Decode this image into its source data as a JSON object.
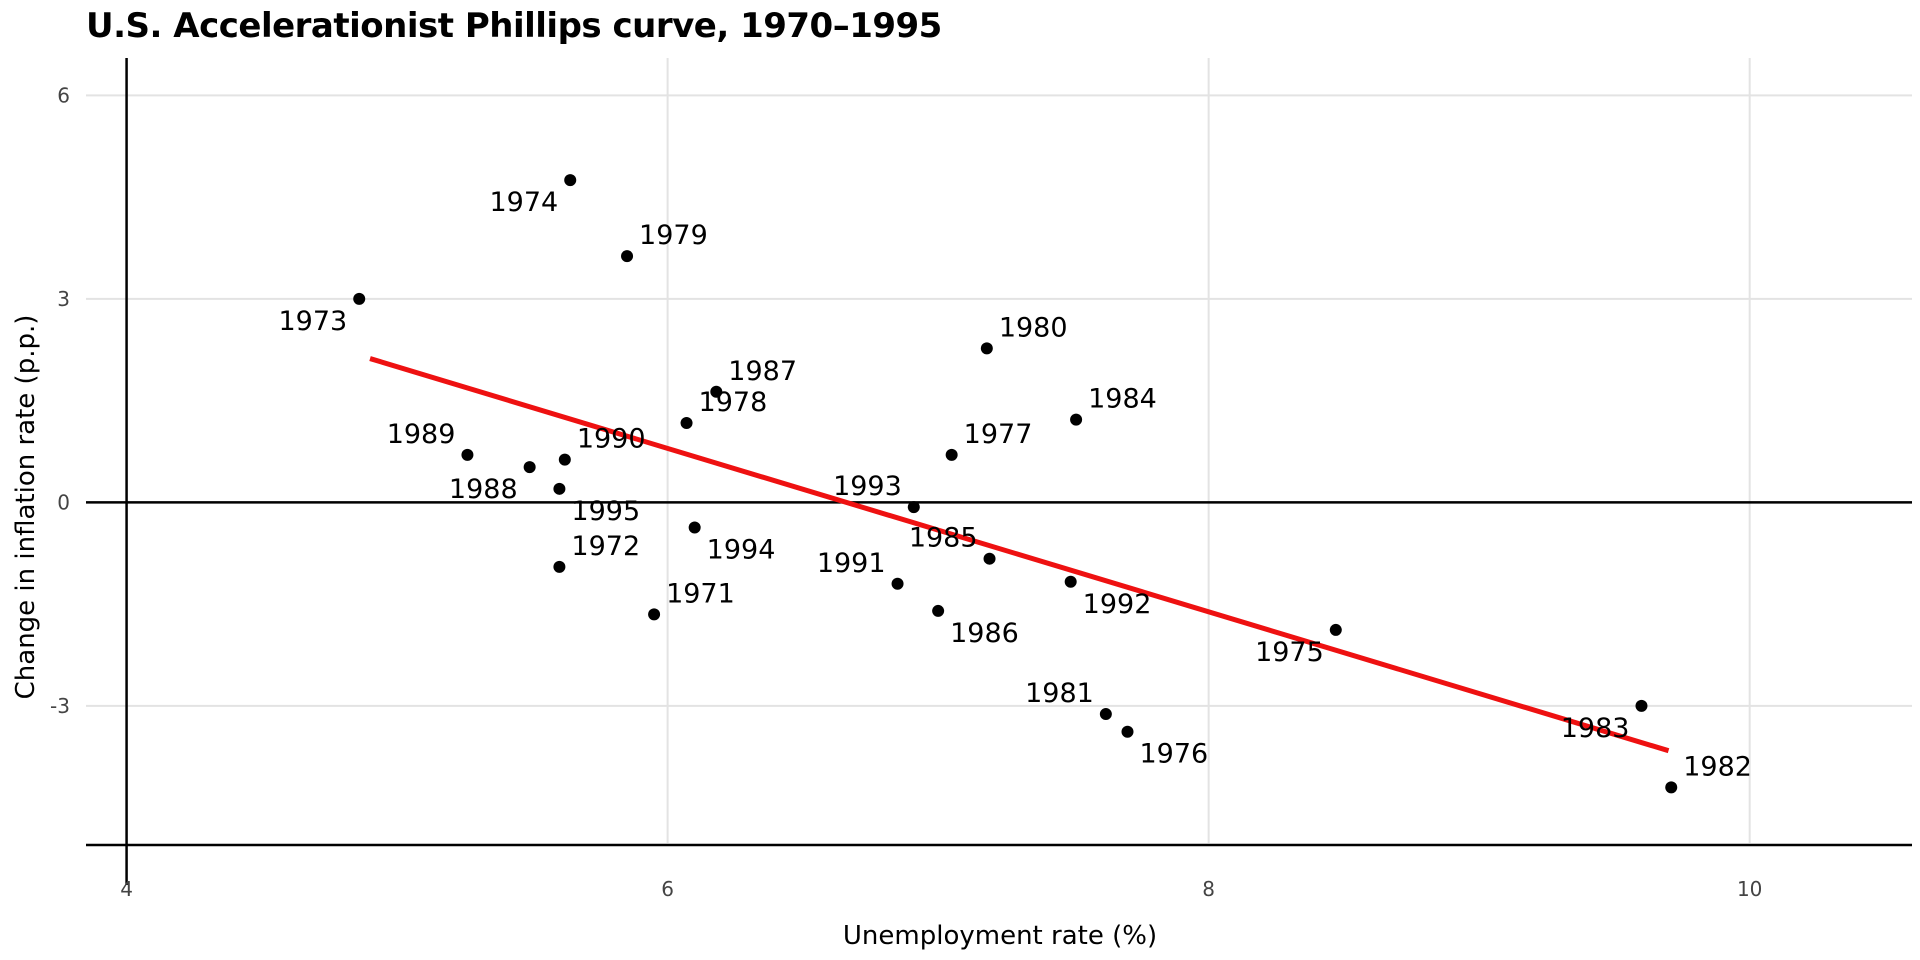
{
  "chart_data": {
    "type": "scatter",
    "title": "U.S. Accelerationist Phillips curve, 1970–1995",
    "xlabel": "Unemployment rate (%)",
    "ylabel": "Change in inflation rate (p.p.)",
    "xlim": [
      3.85,
      10.6
    ],
    "ylim": [
      -5.05,
      6.55
    ],
    "x_ticks": [
      4,
      6,
      8,
      10
    ],
    "x_tick_labels": [
      "4",
      "6",
      "8",
      "10"
    ],
    "y_ticks": [
      6,
      3,
      0,
      -3
    ],
    "y_tick_labels": [
      "6",
      "3",
      "0",
      "-3"
    ],
    "grid": true,
    "reference_lines": {
      "x": 4,
      "y": 0
    },
    "fit_line": {
      "color": "#ee1111",
      "x": [
        4.9,
        9.7
      ],
      "y": [
        2.12,
        -3.66
      ]
    },
    "point_color": "#000000",
    "points": [
      {
        "label": "1971",
        "x": 5.95,
        "y": -1.65,
        "pos": "above-right"
      },
      {
        "label": "1972",
        "x": 5.6,
        "y": -0.95,
        "pos": "above-right"
      },
      {
        "label": "1973",
        "x": 4.86,
        "y": 3.0,
        "pos": "below-left"
      },
      {
        "label": "1974",
        "x": 5.64,
        "y": 4.75,
        "pos": "below-left"
      },
      {
        "label": "1975",
        "x": 8.47,
        "y": -1.88,
        "pos": "below-left"
      },
      {
        "label": "1976",
        "x": 7.7,
        "y": -3.38,
        "pos": "below-right"
      },
      {
        "label": "1977",
        "x": 7.05,
        "y": 0.7,
        "pos": "above-right"
      },
      {
        "label": "1978",
        "x": 6.07,
        "y": 1.17,
        "pos": "above-right"
      },
      {
        "label": "1979",
        "x": 5.85,
        "y": 3.63,
        "pos": "above-right"
      },
      {
        "label": "1980",
        "x": 7.18,
        "y": 2.27,
        "pos": "above-right"
      },
      {
        "label": "1981",
        "x": 7.62,
        "y": -3.12,
        "pos": "above-left"
      },
      {
        "label": "1982",
        "x": 9.71,
        "y": -4.2,
        "pos": "above-right"
      },
      {
        "label": "1983",
        "x": 9.6,
        "y": -3.0,
        "pos": "below-left"
      },
      {
        "label": "1984",
        "x": 7.51,
        "y": 1.22,
        "pos": "above-right"
      },
      {
        "label": "1985",
        "x": 7.19,
        "y": -0.83,
        "pos": "above-left"
      },
      {
        "label": "1986",
        "x": 7.0,
        "y": -1.6,
        "pos": "below-right"
      },
      {
        "label": "1987",
        "x": 6.18,
        "y": 1.63,
        "pos": "above-right"
      },
      {
        "label": "1988",
        "x": 5.49,
        "y": 0.52,
        "pos": "below-left"
      },
      {
        "label": "1989",
        "x": 5.26,
        "y": 0.7,
        "pos": "above-left"
      },
      {
        "label": "1990",
        "x": 5.62,
        "y": 0.63,
        "pos": "above-right"
      },
      {
        "label": "1991",
        "x": 6.85,
        "y": -1.2,
        "pos": "above-left"
      },
      {
        "label": "1992",
        "x": 7.49,
        "y": -1.17,
        "pos": "below-right"
      },
      {
        "label": "1993",
        "x": 6.91,
        "y": -0.07,
        "pos": "above-left"
      },
      {
        "label": "1994",
        "x": 6.1,
        "y": -0.37,
        "pos": "below-right"
      },
      {
        "label": "1995",
        "x": 5.6,
        "y": 0.2,
        "pos": "below-right"
      }
    ]
  }
}
